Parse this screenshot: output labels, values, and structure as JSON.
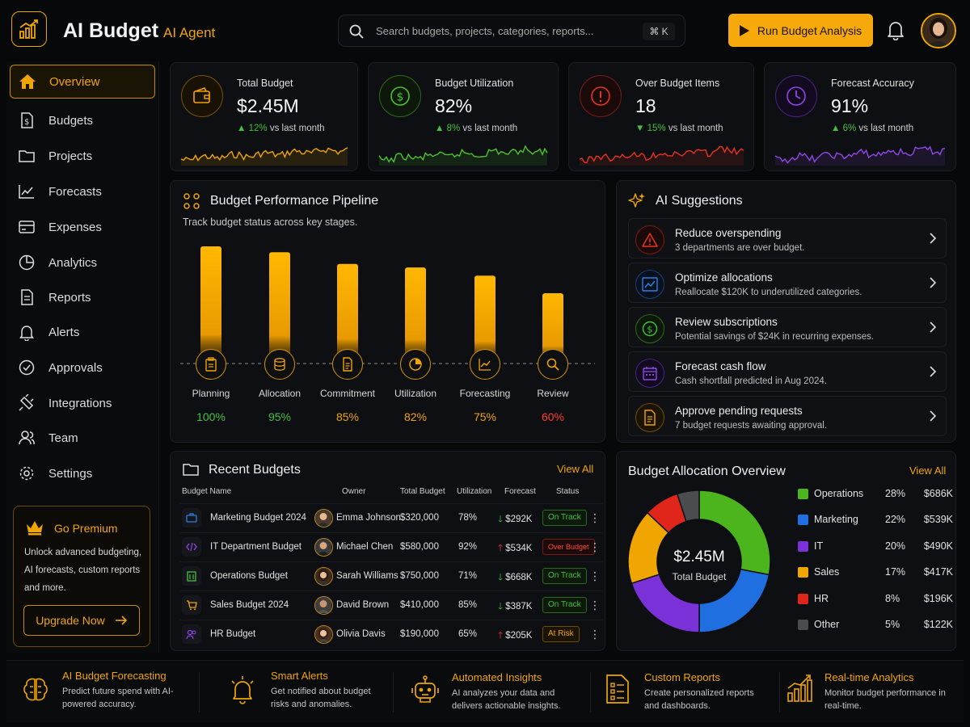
{
  "header": {
    "title": "AI Budget",
    "subtitle": "AI Agent",
    "search_placeholder": "Search budgets, projects, categories, reports...",
    "search_shortcut": "⌘ K",
    "run_button": "Run Budget Analysis",
    "accent": "#f7a90c"
  },
  "sidebar": {
    "items": [
      {
        "label": "Overview",
        "icon": "home-icon",
        "active": true
      },
      {
        "label": "Budgets",
        "icon": "budget-doc-icon"
      },
      {
        "label": "Projects",
        "icon": "folder-icon"
      },
      {
        "label": "Forecasts",
        "icon": "trend-icon"
      },
      {
        "label": "Expenses",
        "icon": "wallet-card-icon"
      },
      {
        "label": "Analytics",
        "icon": "pie-icon"
      },
      {
        "label": "Reports",
        "icon": "report-icon"
      },
      {
        "label": "Alerts",
        "icon": "bell-icon"
      },
      {
        "label": "Approvals",
        "icon": "check-circle-icon"
      },
      {
        "label": "Integrations",
        "icon": "plug-icon"
      },
      {
        "label": "Team",
        "icon": "team-icon"
      },
      {
        "label": "Settings",
        "icon": "gear-icon"
      }
    ],
    "premium": {
      "title": "Go Premium",
      "text": "Unlock advanced budgeting, AI forecasts, custom reports and more.",
      "button": "Upgrade Now"
    }
  },
  "kpis": [
    {
      "label": "Total Budget",
      "value": "$2.45M",
      "delta": "12%",
      "delta_text": "vs last month",
      "color": "#f0a500",
      "icon": "wallet-icon"
    },
    {
      "label": "Budget Utilization",
      "value": "82%",
      "delta": "8%",
      "delta_text": "vs last month",
      "color": "#4cc22e",
      "icon": "dollar-circle-icon"
    },
    {
      "label": "Over Budget Items",
      "value": "18",
      "delta": "15%",
      "delta_text": "vs last month",
      "color": "#e53222",
      "icon": "alert-circle-icon"
    },
    {
      "label": "Forecast Accuracy",
      "value": "91%",
      "delta": "6%",
      "delta_text": "vs last month",
      "color": "#9046e8",
      "icon": "clock-icon"
    }
  ],
  "pipeline": {
    "title": "Budget Performance Pipeline",
    "subtitle": "Track budget status across key stages.",
    "stages": [
      {
        "label": "Planning",
        "pct": "100%",
        "value": 100,
        "color": "#45c03f",
        "icon": "clipboard-icon"
      },
      {
        "label": "Allocation",
        "pct": "95%",
        "value": 95,
        "color": "#45c03f",
        "icon": "coins-icon"
      },
      {
        "label": "Commitment",
        "pct": "85%",
        "value": 85,
        "color": "#f0a500",
        "icon": "document-icon"
      },
      {
        "label": "Utilization",
        "pct": "82%",
        "value": 82,
        "color": "#f0a500",
        "icon": "pie-icon"
      },
      {
        "label": "Forecasting",
        "pct": "75%",
        "value": 75,
        "color": "#f0a500",
        "icon": "chart-icon"
      },
      {
        "label": "Review",
        "pct": "60%",
        "value": 60,
        "color": "#ff3b2f",
        "icon": "magnifier-icon"
      }
    ]
  },
  "suggestions": {
    "title": "AI Suggestions",
    "items": [
      {
        "title": "Reduce overspending",
        "desc": "3 departments are over budget.",
        "color": "#e53222",
        "icon": "warning-icon"
      },
      {
        "title": "Optimize allocations",
        "desc": "Reallocate $120K to underutilized categories.",
        "color": "#2f7de1",
        "icon": "trend-icon"
      },
      {
        "title": "Review subscriptions",
        "desc": "Potential savings of $24K in recurring expenses.",
        "color": "#45c03f",
        "icon": "dollar-circle-icon"
      },
      {
        "title": "Forecast cash flow",
        "desc": "Cash shortfall predicted in Aug 2024.",
        "color": "#9046e8",
        "icon": "calendar-icon"
      },
      {
        "title": "Approve pending requests",
        "desc": "7 budget requests awaiting approval.",
        "color": "#f0a500",
        "icon": "document-icon"
      }
    ]
  },
  "recent": {
    "title": "Recent Budgets",
    "view_all": "View All",
    "columns": [
      "Budget Name",
      "Owner",
      "Total Budget",
      "Utilization",
      "Forecast",
      "Status"
    ],
    "rows": [
      {
        "name": "Marketing Budget 2024",
        "owner": "Emma Johnson",
        "total": "$320,000",
        "util": "78%",
        "forecast": "$292K",
        "dir": "down",
        "status": "On Track",
        "status_kind": "ok",
        "icon": "briefcase-icon",
        "icon_color": "#2f7de1"
      },
      {
        "name": "IT Department Budget",
        "owner": "Michael Chen",
        "total": "$580,000",
        "util": "92%",
        "forecast": "$534K",
        "dir": "up",
        "status": "Over Budget",
        "status_kind": "over",
        "icon": "code-icon",
        "icon_color": "#9046e8"
      },
      {
        "name": "Operations Budget",
        "owner": "Sarah Williams",
        "total": "$750,000",
        "util": "71%",
        "forecast": "$668K",
        "dir": "down",
        "status": "On Track",
        "status_kind": "ok",
        "icon": "building-icon",
        "icon_color": "#45c03f"
      },
      {
        "name": "Sales Budget 2024",
        "owner": "David Brown",
        "total": "$410,000",
        "util": "85%",
        "forecast": "$387K",
        "dir": "down",
        "status": "On Track",
        "status_kind": "ok",
        "icon": "cart-icon",
        "icon_color": "#f0a500"
      },
      {
        "name": "HR Budget",
        "owner": "Olivia Davis",
        "total": "$190,000",
        "util": "65%",
        "forecast": "$205K",
        "dir": "up",
        "status": "At Risk",
        "status_kind": "risk",
        "icon": "people-icon",
        "icon_color": "#9046e8"
      }
    ]
  },
  "allocation": {
    "title": "Budget Allocation Overview",
    "view_all": "View All",
    "center_value": "$2.45M",
    "center_label": "Total Budget"
  },
  "chart_data": {
    "type": "pie",
    "title": "Budget Allocation Overview",
    "categories": [
      "Operations",
      "Marketing",
      "IT",
      "Sales",
      "HR",
      "Other"
    ],
    "values": [
      28,
      22,
      20,
      17,
      8,
      5
    ],
    "labels": [
      "28%",
      "22%",
      "20%",
      "17%",
      "8%",
      "5%"
    ],
    "amounts": [
      "$686K",
      "$539K",
      "$490K",
      "$417K",
      "$196K",
      "$122K"
    ],
    "colors": [
      "#4cb51e",
      "#1f6fe0",
      "#7a32d8",
      "#f0a500",
      "#e0261b",
      "#4a4c50"
    ],
    "legend": "right"
  },
  "features": [
    {
      "title": "AI Budget Forecasting",
      "desc": "Predict future spend with AI-powered accuracy.",
      "icon": "brain-icon"
    },
    {
      "title": "Smart Alerts",
      "desc": "Get notified about budget risks and anomalies.",
      "icon": "alarm-bell-icon"
    },
    {
      "title": "Automated Insights",
      "desc": "AI analyzes your data and delivers actionable insights.",
      "icon": "robot-icon"
    },
    {
      "title": "Custom Reports",
      "desc": "Create personalized reports and dashboards.",
      "icon": "checklist-icon"
    },
    {
      "title": "Real-time Analytics",
      "desc": "Monitor budget performance in real-time.",
      "icon": "bar-chart-icon"
    }
  ]
}
